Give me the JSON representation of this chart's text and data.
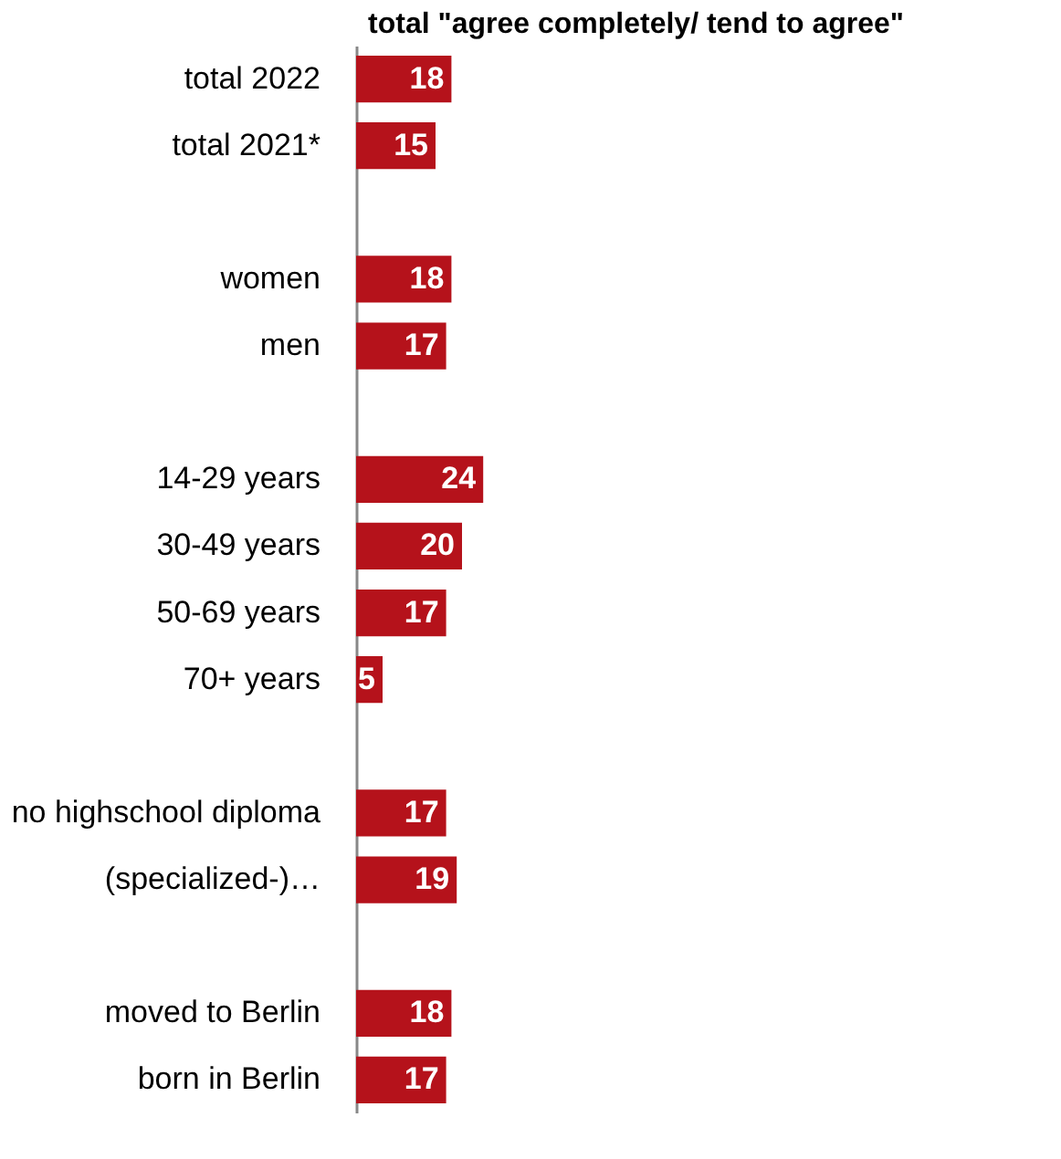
{
  "chart_data": {
    "type": "bar",
    "orientation": "horizontal",
    "title": "total \"agree completely/ tend to agree\"",
    "categories": [
      "total 2022",
      "total 2021*",
      null,
      "women",
      "men",
      null,
      "14-29 years",
      "30-49 years",
      "50-69 years",
      "70+ years",
      null,
      "no highschool diploma",
      "(specialized-)…",
      null,
      "moved to Berlin",
      "born in Berlin"
    ],
    "values": [
      18,
      15,
      null,
      18,
      17,
      null,
      24,
      20,
      17,
      5,
      null,
      17,
      19,
      null,
      18,
      17
    ],
    "color": "#b5121b",
    "data_labels": true,
    "grid": false
  }
}
